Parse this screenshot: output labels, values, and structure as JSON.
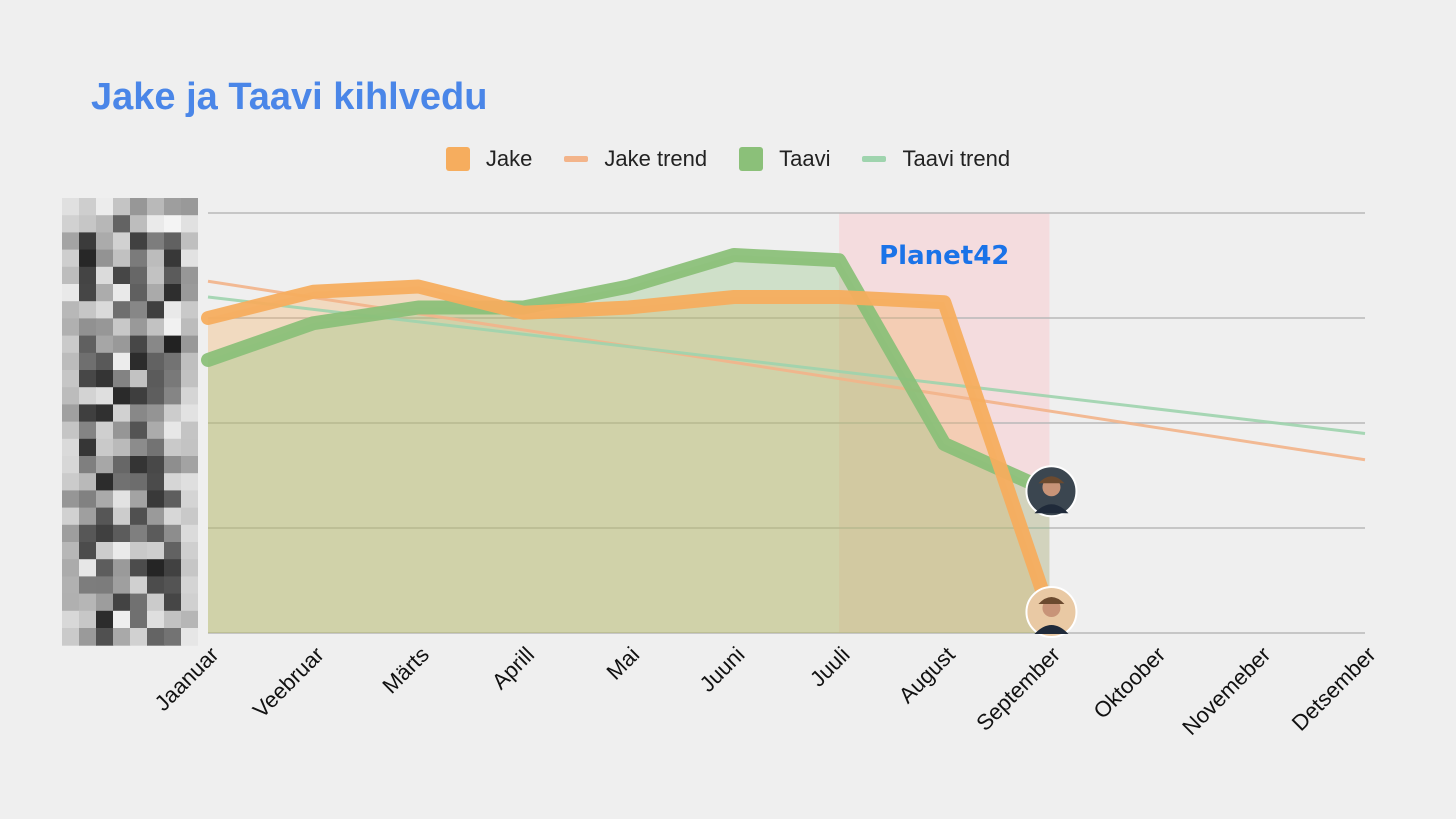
{
  "chart_data": {
    "type": "line",
    "title": "Jake ja Taavi kihlvedu",
    "categories": [
      "Jaanuar",
      "Veebruar",
      "Märts",
      "Aprill",
      "Mai",
      "Juuni",
      "Juuli",
      "August",
      "September",
      "Oktoober",
      "Novemeber",
      "Detsember"
    ],
    "series": [
      {
        "name": "Jake",
        "color": "#f6ad5e",
        "values": [
          3.0,
          3.25,
          3.3,
          3.05,
          3.1,
          3.2,
          3.2,
          3.15,
          0.2,
          null,
          null,
          null
        ]
      },
      {
        "name": "Taavi",
        "color": "#8bc079",
        "values": [
          2.6,
          2.95,
          3.1,
          3.1,
          3.3,
          3.6,
          3.55,
          1.8,
          1.35,
          null,
          null,
          null
        ]
      }
    ],
    "trends": [
      {
        "name": "Jake trend",
        "color": "#f3b48a",
        "start": 3.35,
        "end": 1.65
      },
      {
        "name": "Taavi trend",
        "color": "#9fd4ae",
        "start": 3.2,
        "end": 1.9
      }
    ],
    "ylim": [
      0,
      4
    ],
    "grid": true,
    "legend_position": "top",
    "highlight": {
      "from": "Juuli",
      "to": "September",
      "label": "Planet42",
      "color": "#f5d7d9"
    },
    "markers": [
      {
        "series": "Taavi",
        "category": "September",
        "icon": "avatar"
      },
      {
        "series": "Jake",
        "category": "September",
        "icon": "avatar"
      }
    ]
  }
}
